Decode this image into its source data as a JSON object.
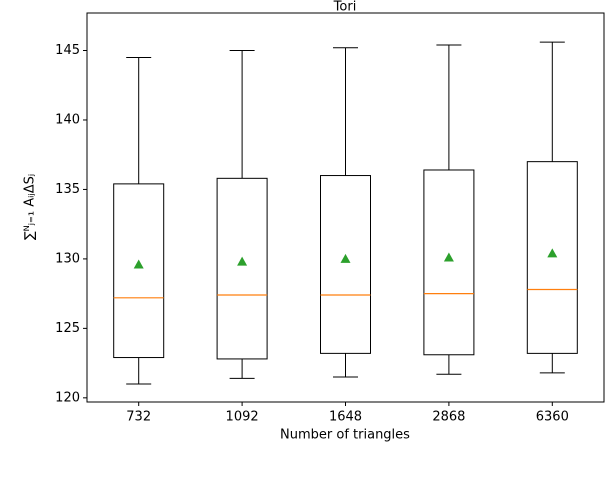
{
  "chart_data": {
    "type": "box",
    "title": "Tori",
    "xlabel": "Number of triangles",
    "ylabel": "∑ᴺⱼ₌₁ AᵢⱼΔSⱼ",
    "categories": [
      "732",
      "1092",
      "1648",
      "2868",
      "6360"
    ],
    "boxes": [
      {
        "whislo": 121.0,
        "q1": 122.9,
        "med": 127.2,
        "mean": 129.6,
        "q3": 135.4,
        "whishi": 144.5
      },
      {
        "whislo": 121.4,
        "q1": 122.8,
        "med": 127.4,
        "mean": 129.8,
        "q3": 135.8,
        "whishi": 145.0
      },
      {
        "whislo": 121.5,
        "q1": 123.2,
        "med": 127.4,
        "mean": 130.0,
        "q3": 136.0,
        "whishi": 145.2
      },
      {
        "whislo": 121.7,
        "q1": 123.1,
        "med": 127.5,
        "mean": 130.1,
        "q3": 136.4,
        "whishi": 145.4
      },
      {
        "whislo": 121.8,
        "q1": 123.2,
        "med": 127.8,
        "mean": 130.4,
        "q3": 137.0,
        "whishi": 145.6
      }
    ],
    "median_color": "#ff7f0e",
    "mean_color": "#2ca02c",
    "ylim": [
      119.7,
      147.7
    ],
    "yticks": [
      120,
      125,
      130,
      135,
      140,
      145
    ],
    "grid": false
  }
}
